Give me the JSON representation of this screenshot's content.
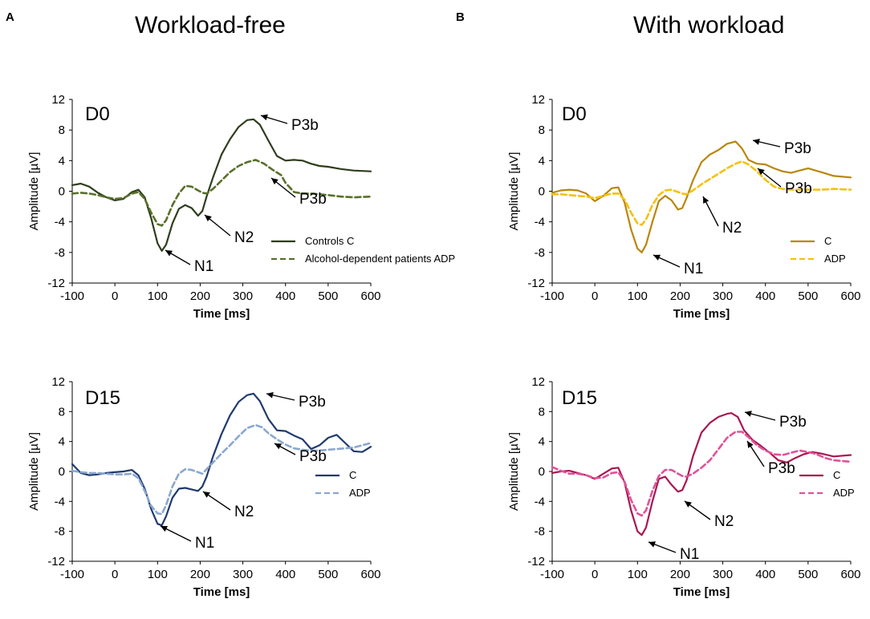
{
  "figure": {
    "panel_a": {
      "letter": "A",
      "title": "Workload-free"
    },
    "panel_b": {
      "letter": "B",
      "title": "With workload"
    }
  },
  "chart_data": [
    {
      "id": "a-d0",
      "type": "line",
      "label": "D0",
      "xlabel": "Time [ms]",
      "ylabel": "Amplitude [µV]",
      "xlim": [
        -100,
        600
      ],
      "ylim": [
        -12,
        12
      ],
      "xticks": [
        -100,
        0,
        100,
        200,
        300,
        400,
        500,
        600
      ],
      "yticks": [
        -12,
        -8,
        -4,
        0,
        4,
        8,
        12
      ],
      "legend": {
        "position": "bottom-right"
      },
      "series": [
        {
          "name": "Controls C",
          "color": "#2e3d1c",
          "style": "solid",
          "x": [
            -100,
            -80,
            -60,
            -40,
            -20,
            0,
            20,
            40,
            55,
            70,
            85,
            100,
            110,
            120,
            135,
            150,
            165,
            180,
            195,
            205,
            215,
            230,
            250,
            270,
            290,
            310,
            325,
            340,
            360,
            380,
            400,
            420,
            440,
            460,
            480,
            500,
            530,
            560,
            600
          ],
          "y": [
            0.8,
            1,
            0.6,
            -0.2,
            -0.8,
            -1.2,
            -1,
            -0.1,
            0.2,
            -0.8,
            -3.5,
            -6.8,
            -7.8,
            -7,
            -4.2,
            -2.3,
            -1.8,
            -2.2,
            -3.2,
            -2.6,
            -0.7,
            1.8,
            4.8,
            6.8,
            8.4,
            9.3,
            9.4,
            8.7,
            6.6,
            4.6,
            4,
            4.1,
            4,
            3.6,
            3.3,
            3.2,
            2.9,
            2.7,
            2.6
          ]
        },
        {
          "name": "Alcohol-dependent patients ADP",
          "color": "#58702a",
          "style": "dashed",
          "x": [
            -100,
            -80,
            -60,
            -40,
            -20,
            0,
            20,
            40,
            55,
            70,
            85,
            100,
            110,
            120,
            135,
            150,
            165,
            180,
            195,
            205,
            215,
            230,
            250,
            270,
            290,
            310,
            330,
            350,
            370,
            390,
            400,
            420,
            440,
            460,
            480,
            500,
            530,
            560,
            600
          ],
          "y": [
            -0.3,
            -0.2,
            -0.3,
            -0.5,
            -0.8,
            -1,
            -0.9,
            -0.3,
            -0.1,
            -1,
            -2.8,
            -4.3,
            -4.5,
            -3.8,
            -1.8,
            -0.3,
            0.7,
            0.6,
            0.1,
            -0.2,
            -0.3,
            0.3,
            1.4,
            2.5,
            3.3,
            3.8,
            4.1,
            3.6,
            2.8,
            2.1,
            1.1,
            -0.1,
            -0.3,
            -0.3,
            -0.4,
            -0.5,
            -0.7,
            -0.8,
            -0.7
          ]
        }
      ],
      "annotations": [
        "P3b",
        "P3b",
        "N2",
        "N1"
      ]
    },
    {
      "id": "b-d0",
      "type": "line",
      "label": "D0",
      "xlabel": "Time [ms]",
      "ylabel": "Amplitude [µV]",
      "xlim": [
        -100,
        600
      ],
      "ylim": [
        -12,
        12
      ],
      "xticks": [
        -100,
        0,
        100,
        200,
        300,
        400,
        500,
        600
      ],
      "yticks": [
        -12,
        -8,
        -4,
        0,
        4,
        8,
        12
      ],
      "legend": {
        "position": "bottom-right"
      },
      "series": [
        {
          "name": "C",
          "color": "#b8860b",
          "style": "solid",
          "x": [
            -100,
            -80,
            -60,
            -40,
            -20,
            0,
            20,
            40,
            55,
            70,
            85,
            100,
            110,
            120,
            135,
            150,
            165,
            180,
            195,
            205,
            215,
            230,
            250,
            270,
            290,
            310,
            330,
            345,
            360,
            380,
            400,
            420,
            440,
            460,
            480,
            500,
            530,
            560,
            600
          ],
          "y": [
            -0.2,
            0.1,
            0.2,
            0.1,
            -0.3,
            -1.3,
            -0.6,
            0.4,
            0.5,
            -1.5,
            -5,
            -7.5,
            -8,
            -7,
            -4,
            -1.3,
            -0.6,
            -1.2,
            -2.4,
            -2.2,
            -0.9,
            1.4,
            3.8,
            4.8,
            5.4,
            6.2,
            6.5,
            5.6,
            4.1,
            3.6,
            3.5,
            3,
            2.6,
            2.4,
            2.7,
            3,
            2.5,
            2,
            1.8
          ]
        },
        {
          "name": "ADP",
          "color": "#f5c10f",
          "style": "dashed",
          "x": [
            -100,
            -80,
            -60,
            -40,
            -20,
            0,
            20,
            40,
            55,
            70,
            85,
            100,
            110,
            120,
            135,
            150,
            165,
            180,
            195,
            205,
            215,
            230,
            250,
            270,
            290,
            310,
            330,
            345,
            360,
            380,
            400,
            420,
            440,
            460,
            480,
            500,
            530,
            560,
            600
          ],
          "y": [
            -0.4,
            -0.4,
            -0.5,
            -0.6,
            -0.7,
            -0.9,
            -0.6,
            -0.3,
            -0.3,
            -1.1,
            -2.8,
            -4.2,
            -4.4,
            -3.7,
            -1.8,
            -0.5,
            0.1,
            0.2,
            -0.1,
            -0.3,
            -0.4,
            0.1,
            0.9,
            1.6,
            2.3,
            3,
            3.6,
            3.9,
            3.5,
            2.6,
            1.5,
            0.6,
            0.3,
            0.2,
            0.2,
            0.2,
            0.2,
            0.3,
            0.2
          ]
        }
      ],
      "annotations": [
        "P3b",
        "P3b",
        "N2",
        "N1"
      ]
    },
    {
      "id": "a-d15",
      "type": "line",
      "label": "D15",
      "xlabel": "Time [ms]",
      "ylabel": "Amplitude [µV]",
      "xlim": [
        -100,
        600
      ],
      "ylim": [
        -12,
        12
      ],
      "xticks": [
        -100,
        0,
        100,
        200,
        300,
        400,
        500,
        600
      ],
      "yticks": [
        -12,
        -8,
        -4,
        0,
        4,
        8,
        12
      ],
      "legend": {
        "position": "bottom-right"
      },
      "series": [
        {
          "name": "C",
          "color": "#1f3a6e",
          "style": "solid",
          "x": [
            -100,
            -80,
            -60,
            -40,
            -20,
            0,
            20,
            40,
            55,
            70,
            85,
            100,
            110,
            120,
            135,
            150,
            165,
            180,
            195,
            205,
            215,
            230,
            250,
            270,
            290,
            310,
            325,
            340,
            360,
            380,
            400,
            420,
            440,
            460,
            480,
            500,
            520,
            540,
            560,
            580,
            600
          ],
          "y": [
            1,
            -0.2,
            -0.5,
            -0.4,
            -0.2,
            -0.1,
            0,
            0.2,
            -0.5,
            -2.3,
            -5,
            -7,
            -7.2,
            -6,
            -3.5,
            -2.3,
            -2.2,
            -2.4,
            -2.6,
            -2,
            -0.7,
            2,
            5,
            7.5,
            9.3,
            10.2,
            10.4,
            9.4,
            7,
            5.5,
            5.4,
            4.8,
            4.3,
            3,
            3.5,
            4.5,
            4.9,
            3.8,
            2.7,
            2.6,
            3.3
          ]
        },
        {
          "name": "ADP",
          "color": "#8aa7d0",
          "style": "dashed",
          "x": [
            -100,
            -80,
            -60,
            -40,
            -20,
            0,
            20,
            40,
            55,
            70,
            85,
            100,
            110,
            120,
            135,
            150,
            165,
            180,
            195,
            205,
            215,
            230,
            250,
            270,
            290,
            310,
            330,
            345,
            360,
            380,
            400,
            420,
            440,
            460,
            480,
            500,
            520,
            540,
            560,
            580,
            600
          ],
          "y": [
            0.1,
            -0.1,
            -0.2,
            -0.2,
            -0.3,
            -0.4,
            -0.4,
            -0.3,
            -0.9,
            -2.6,
            -4.6,
            -5.6,
            -5.7,
            -4.5,
            -2,
            -0.3,
            0.3,
            0.2,
            -0.1,
            -0.3,
            0.3,
            1.2,
            2.4,
            3.5,
            4.7,
            5.8,
            6.2,
            5.9,
            5.1,
            4.3,
            3.6,
            3.1,
            2.9,
            2.8,
            2.8,
            2.9,
            3,
            3.1,
            3.2,
            3.5,
            3.8
          ]
        }
      ],
      "annotations": [
        "P3b",
        "P3b",
        "N2",
        "N1"
      ]
    },
    {
      "id": "b-d15",
      "type": "line",
      "label": "D15",
      "xlabel": "Time [ms]",
      "ylabel": "Amplitude [µV]",
      "xlim": [
        -100,
        600
      ],
      "ylim": [
        -12,
        12
      ],
      "xticks": [
        -100,
        0,
        100,
        200,
        300,
        400,
        500,
        600
      ],
      "yticks": [
        -12,
        -8,
        -4,
        0,
        4,
        8,
        12
      ],
      "legend": {
        "position": "bottom-right"
      },
      "series": [
        {
          "name": "C",
          "color": "#a8174f",
          "style": "solid",
          "x": [
            -100,
            -80,
            -60,
            -40,
            -20,
            0,
            20,
            40,
            55,
            70,
            85,
            100,
            110,
            120,
            135,
            150,
            165,
            180,
            195,
            205,
            215,
            230,
            250,
            270,
            290,
            310,
            320,
            335,
            350,
            370,
            390,
            410,
            430,
            450,
            470,
            490,
            510,
            530,
            560,
            600
          ],
          "y": [
            -0.2,
            0,
            0.1,
            -0.2,
            -0.5,
            -1,
            -0.3,
            0.4,
            0.5,
            -1.5,
            -5.2,
            -8,
            -8.5,
            -7.5,
            -4,
            -1,
            -0.7,
            -1.8,
            -2.7,
            -2.5,
            -1.2,
            2,
            5.2,
            6.5,
            7.3,
            7.7,
            7.8,
            7.3,
            5.5,
            4.2,
            3.4,
            2.5,
            1.5,
            1.2,
            1.8,
            2.3,
            2.6,
            2.4,
            2,
            2.2
          ]
        },
        {
          "name": "ADP",
          "color": "#e0529a",
          "style": "dashed",
          "x": [
            -100,
            -80,
            -60,
            -40,
            -20,
            0,
            20,
            40,
            55,
            70,
            85,
            100,
            110,
            120,
            135,
            150,
            165,
            180,
            195,
            205,
            215,
            230,
            250,
            270,
            290,
            310,
            330,
            345,
            360,
            380,
            400,
            420,
            440,
            460,
            480,
            500,
            520,
            540,
            560,
            600
          ],
          "y": [
            0.6,
            0.1,
            -0.3,
            -0.3,
            -0.5,
            -0.9,
            -0.8,
            -0.2,
            -0.1,
            -1.4,
            -3.8,
            -5.6,
            -5.9,
            -5.2,
            -2.6,
            -0.6,
            0.2,
            0.2,
            -0.3,
            -0.6,
            -0.7,
            -0.3,
            0.5,
            1.5,
            3,
            4.5,
            5.3,
            5.3,
            4.6,
            3.5,
            2.8,
            2.3,
            2.2,
            2.5,
            2.8,
            2.6,
            2.3,
            1.8,
            1.5,
            1.3
          ]
        }
      ],
      "annotations": [
        "P3b",
        "P3b",
        "N2",
        "N1"
      ]
    }
  ]
}
